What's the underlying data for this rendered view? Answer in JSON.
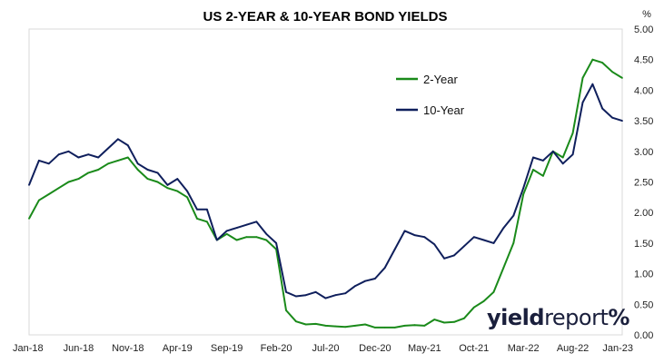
{
  "chart_data": {
    "type": "line",
    "title": "US 2-YEAR & 10-YEAR BOND YIELDS",
    "y_unit": "%",
    "xlabel": "",
    "ylabel": "",
    "ylim": [
      0,
      5
    ],
    "y_ticks": [
      "0.00",
      "0.50",
      "1.00",
      "1.50",
      "2.00",
      "2.50",
      "3.00",
      "3.50",
      "4.00",
      "4.50",
      "5.00"
    ],
    "x_tick_labels": [
      "Jan-18",
      "Jun-18",
      "Nov-18",
      "Apr-19",
      "Sep-19",
      "Feb-20",
      "Jul-20",
      "Dec-20",
      "May-21",
      "Oct-21",
      "Mar-22",
      "Aug-22",
      "Jan-23"
    ],
    "grid": "none",
    "legend_position": "upper-right",
    "x": [
      "2018-01",
      "2018-02",
      "2018-03",
      "2018-04",
      "2018-05",
      "2018-06",
      "2018-07",
      "2018-08",
      "2018-09",
      "2018-10",
      "2018-11",
      "2018-12",
      "2019-01",
      "2019-02",
      "2019-03",
      "2019-04",
      "2019-05",
      "2019-06",
      "2019-07",
      "2019-08",
      "2019-09",
      "2019-10",
      "2019-11",
      "2019-12",
      "2020-01",
      "2020-02",
      "2020-03",
      "2020-04",
      "2020-05",
      "2020-06",
      "2020-07",
      "2020-08",
      "2020-09",
      "2020-10",
      "2020-11",
      "2020-12",
      "2021-01",
      "2021-02",
      "2021-03",
      "2021-04",
      "2021-05",
      "2021-06",
      "2021-07",
      "2021-08",
      "2021-09",
      "2021-10",
      "2021-11",
      "2021-12",
      "2022-01",
      "2022-02",
      "2022-03",
      "2022-04",
      "2022-05",
      "2022-06",
      "2022-07",
      "2022-08",
      "2022-09",
      "2022-10",
      "2022-11",
      "2022-12",
      "2023-01"
    ],
    "series": [
      {
        "name": "2-Year",
        "color": "#1a8a1a",
        "values": [
          1.9,
          2.2,
          2.3,
          2.4,
          2.5,
          2.55,
          2.65,
          2.7,
          2.8,
          2.85,
          2.9,
          2.7,
          2.55,
          2.5,
          2.4,
          2.35,
          2.25,
          1.9,
          1.85,
          1.55,
          1.65,
          1.55,
          1.6,
          1.6,
          1.55,
          1.4,
          0.4,
          0.22,
          0.17,
          0.18,
          0.15,
          0.14,
          0.13,
          0.15,
          0.17,
          0.12,
          0.12,
          0.12,
          0.15,
          0.16,
          0.15,
          0.25,
          0.2,
          0.21,
          0.27,
          0.45,
          0.55,
          0.7,
          1.1,
          1.5,
          2.3,
          2.7,
          2.6,
          3.0,
          2.9,
          3.3,
          4.2,
          4.5,
          4.45,
          4.3,
          4.2
        ]
      },
      {
        "name": "10-Year",
        "color": "#0f1f5c",
        "values": [
          2.45,
          2.85,
          2.8,
          2.95,
          3.0,
          2.9,
          2.95,
          2.9,
          3.05,
          3.2,
          3.1,
          2.8,
          2.7,
          2.65,
          2.45,
          2.55,
          2.35,
          2.05,
          2.05,
          1.55,
          1.7,
          1.75,
          1.8,
          1.85,
          1.65,
          1.5,
          0.7,
          0.63,
          0.65,
          0.7,
          0.6,
          0.65,
          0.68,
          0.8,
          0.88,
          0.92,
          1.1,
          1.4,
          1.7,
          1.63,
          1.6,
          1.48,
          1.25,
          1.3,
          1.45,
          1.6,
          1.55,
          1.5,
          1.75,
          1.95,
          2.4,
          2.9,
          2.85,
          3.0,
          2.8,
          2.95,
          3.8,
          4.1,
          3.7,
          3.55,
          3.5
        ]
      }
    ]
  },
  "brand": {
    "part1": "yield",
    "part2": "report",
    "symbol": "%"
  }
}
